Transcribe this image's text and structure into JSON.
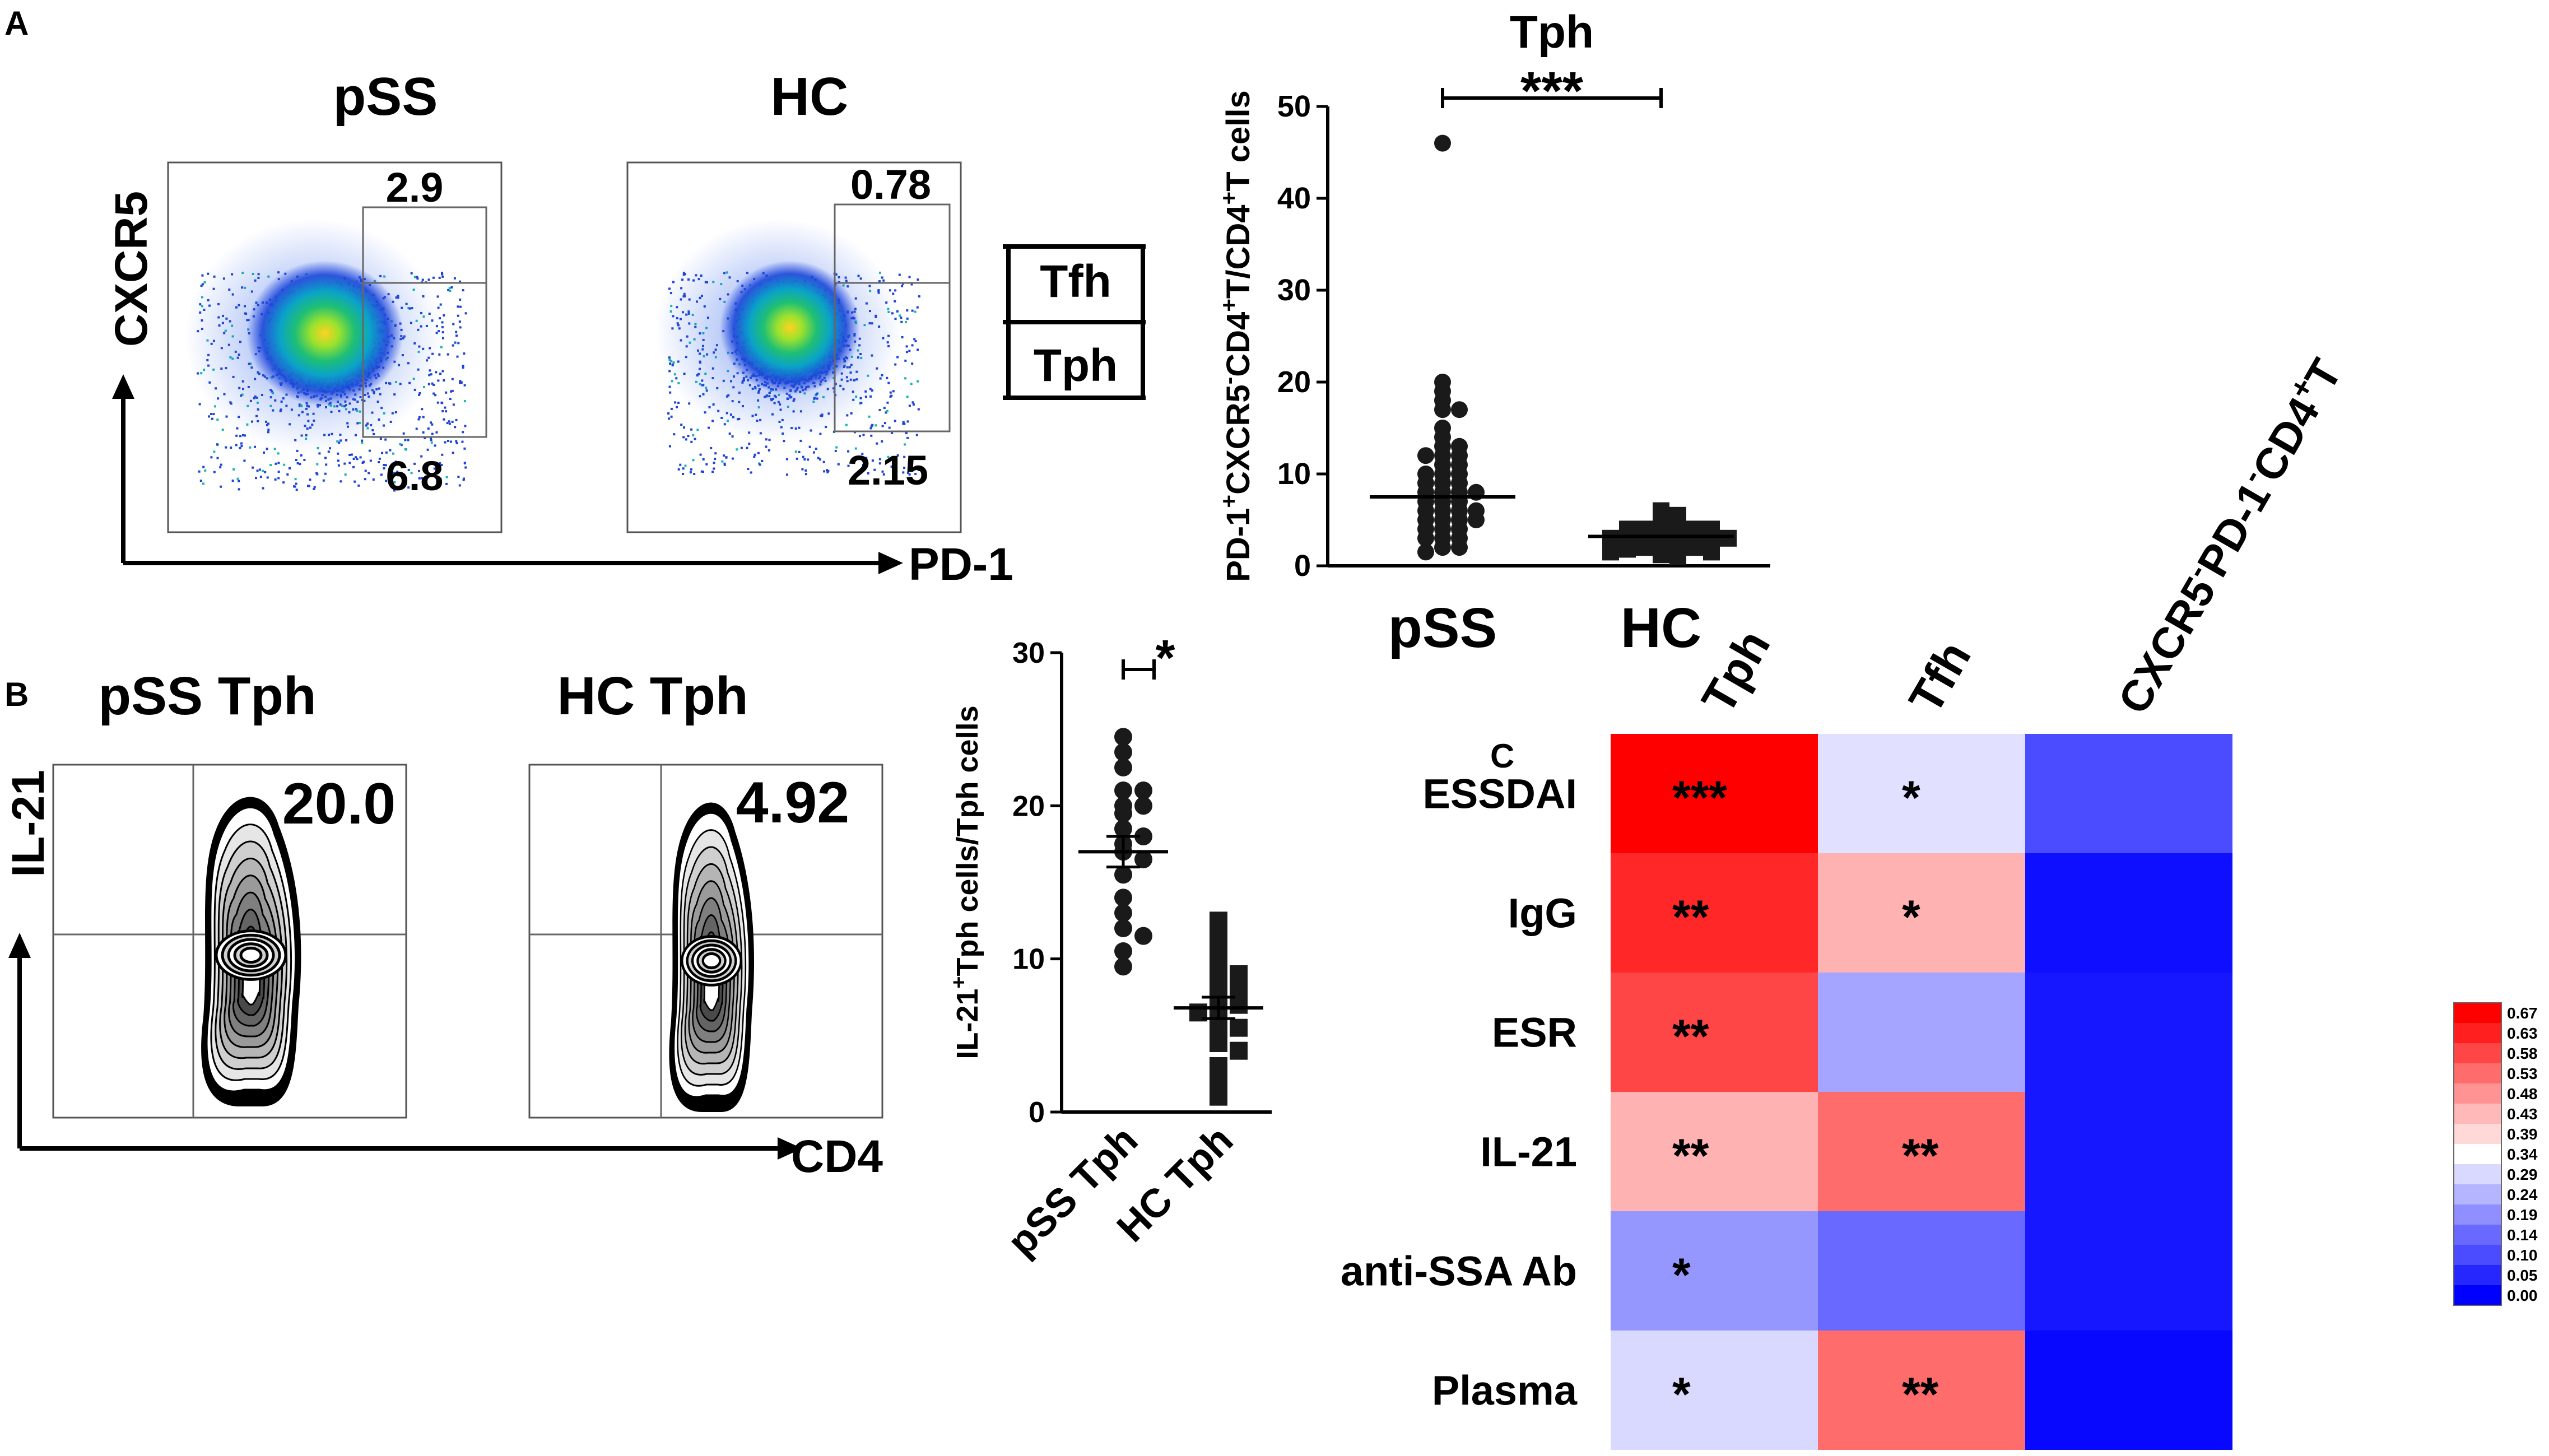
{
  "panels": {
    "a": {
      "label": "A"
    },
    "b": {
      "label": "B"
    },
    "c": {
      "label": "C"
    }
  },
  "flow_a": {
    "plots": [
      {
        "title": "pSS",
        "upper_value": "2.9",
        "lower_value": "6.8"
      },
      {
        "title": "HC",
        "upper_value": "0.78",
        "lower_value": "2.15"
      }
    ],
    "y_axis_label": "CXCR5",
    "x_axis_label": "PD-1",
    "legend": [
      "Tfh",
      "Tph"
    ]
  },
  "flow_b": {
    "plots": [
      {
        "title": "pSS  Tph",
        "value": "20.0"
      },
      {
        "title": "HC  Tph",
        "value": "4.92"
      }
    ],
    "y_axis_label": "IL-21",
    "x_axis_label": "CD4"
  },
  "chart_data": [
    {
      "id": "tph-frequency",
      "type": "scatter",
      "title": "Tph",
      "ylabel_parts": [
        {
          "t": "PD-1"
        },
        {
          "t": "+",
          "sup": true
        },
        {
          "t": "CXCR5"
        },
        {
          "t": "-",
          "sup": true
        },
        {
          "t": "CD4"
        },
        {
          "t": "+",
          "sup": true
        },
        {
          "t": "T/CD4"
        },
        {
          "t": "+",
          "sup": true
        },
        {
          "t": "T cells"
        }
      ],
      "categories": [
        "pSS",
        "HC"
      ],
      "ylim": [
        0,
        50
      ],
      "yticks": [
        0,
        10,
        20,
        30,
        40,
        50
      ],
      "significance": "***",
      "series": [
        {
          "name": "pSS",
          "marker": "circle",
          "mean": 7.5,
          "values": [
            46,
            20,
            19,
            18,
            17,
            17,
            15,
            14,
            13,
            13,
            12,
            12,
            12,
            11,
            11,
            10,
            10,
            10,
            9,
            9,
            9,
            8,
            8,
            8,
            8,
            7,
            7,
            7,
            6,
            6,
            6,
            6,
            5,
            5,
            5,
            5,
            4,
            4,
            4,
            3,
            3,
            3,
            2,
            2,
            1.5
          ]
        },
        {
          "name": "HC",
          "marker": "square",
          "mean": 3.2,
          "values": [
            6,
            5.5,
            5,
            5,
            4.5,
            4.5,
            4,
            4,
            4,
            4,
            3.5,
            3.5,
            3.5,
            3,
            3,
            3,
            3,
            3,
            2.5,
            2.5,
            2.5,
            2,
            2,
            2,
            2,
            1.8,
            1.5,
            1.5,
            1.2,
            1
          ]
        }
      ]
    },
    {
      "id": "il21-tph",
      "type": "scatter",
      "ylabel_parts": [
        {
          "t": "IL-21"
        },
        {
          "t": "+",
          "sup": true
        },
        {
          "t": "Tph cells/Tph cells"
        }
      ],
      "categories": [
        "pSS Tph",
        "HC Tph"
      ],
      "ylim": [
        0,
        30
      ],
      "yticks": [
        0,
        10,
        20,
        30
      ],
      "significance": "*",
      "series": [
        {
          "name": "pSS Tph",
          "marker": "circle",
          "mean": 17,
          "sem": 1,
          "values": [
            24.5,
            23.5,
            22.5,
            21,
            21,
            20,
            20,
            19.5,
            18.5,
            18,
            17.5,
            17,
            16.5,
            15.5,
            14,
            13,
            12,
            11.5,
            10.5,
            9.5
          ]
        },
        {
          "name": "HC Tph",
          "marker": "square",
          "mean": 6.8,
          "sem": 0.7,
          "values": [
            12.5,
            11.5,
            10.5,
            9.8,
            9.5,
            9,
            8.5,
            8,
            7.5,
            7,
            7,
            6.5,
            6,
            5.5,
            5,
            4.5,
            4,
            3,
            2,
            1
          ]
        }
      ]
    },
    {
      "id": "correlation-heatmap",
      "type": "heatmap",
      "columns": [
        "Tph",
        "Tfh",
        "CXCR5-PD-1-CD4+T"
      ],
      "column_parts": [
        [
          {
            "t": "Tph"
          }
        ],
        [
          {
            "t": "Tfh"
          }
        ],
        [
          {
            "t": "CXCR5"
          },
          {
            "t": "-",
            "sup": true
          },
          {
            "t": "PD-1"
          },
          {
            "t": "-",
            "sup": true
          },
          {
            "t": "CD4"
          },
          {
            "t": "+",
            "sup": true
          },
          {
            "t": "T"
          }
        ]
      ],
      "rows": [
        "ESSDAI",
        "IgG",
        "ESR",
        "IL-21",
        "anti-SSA Ab",
        "Plasma"
      ],
      "values": [
        [
          0.67,
          0.3,
          0.1
        ],
        [
          0.62,
          0.44,
          0.02
        ],
        [
          0.58,
          0.22,
          0.03
        ],
        [
          0.44,
          0.53,
          0.03
        ],
        [
          0.2,
          0.14,
          0.03
        ],
        [
          0.29,
          0.53,
          0.01
        ]
      ],
      "annotations": [
        [
          "***",
          "*",
          ""
        ],
        [
          "**",
          "*",
          ""
        ],
        [
          "**",
          "",
          ""
        ],
        [
          "**",
          "**",
          ""
        ],
        [
          "*",
          "",
          ""
        ],
        [
          "*",
          "**",
          ""
        ]
      ],
      "colorbar_ticks": [
        "0.67",
        "0.63",
        "0.58",
        "0.53",
        "0.48",
        "0.43",
        "0.39",
        "0.34",
        "0.29",
        "0.24",
        "0.19",
        "0.14",
        "0.10",
        "0.05",
        "0.00"
      ],
      "colors": {
        "low": "#0000ff",
        "mid": "#ffffff",
        "high": "#ff0000"
      }
    }
  ]
}
